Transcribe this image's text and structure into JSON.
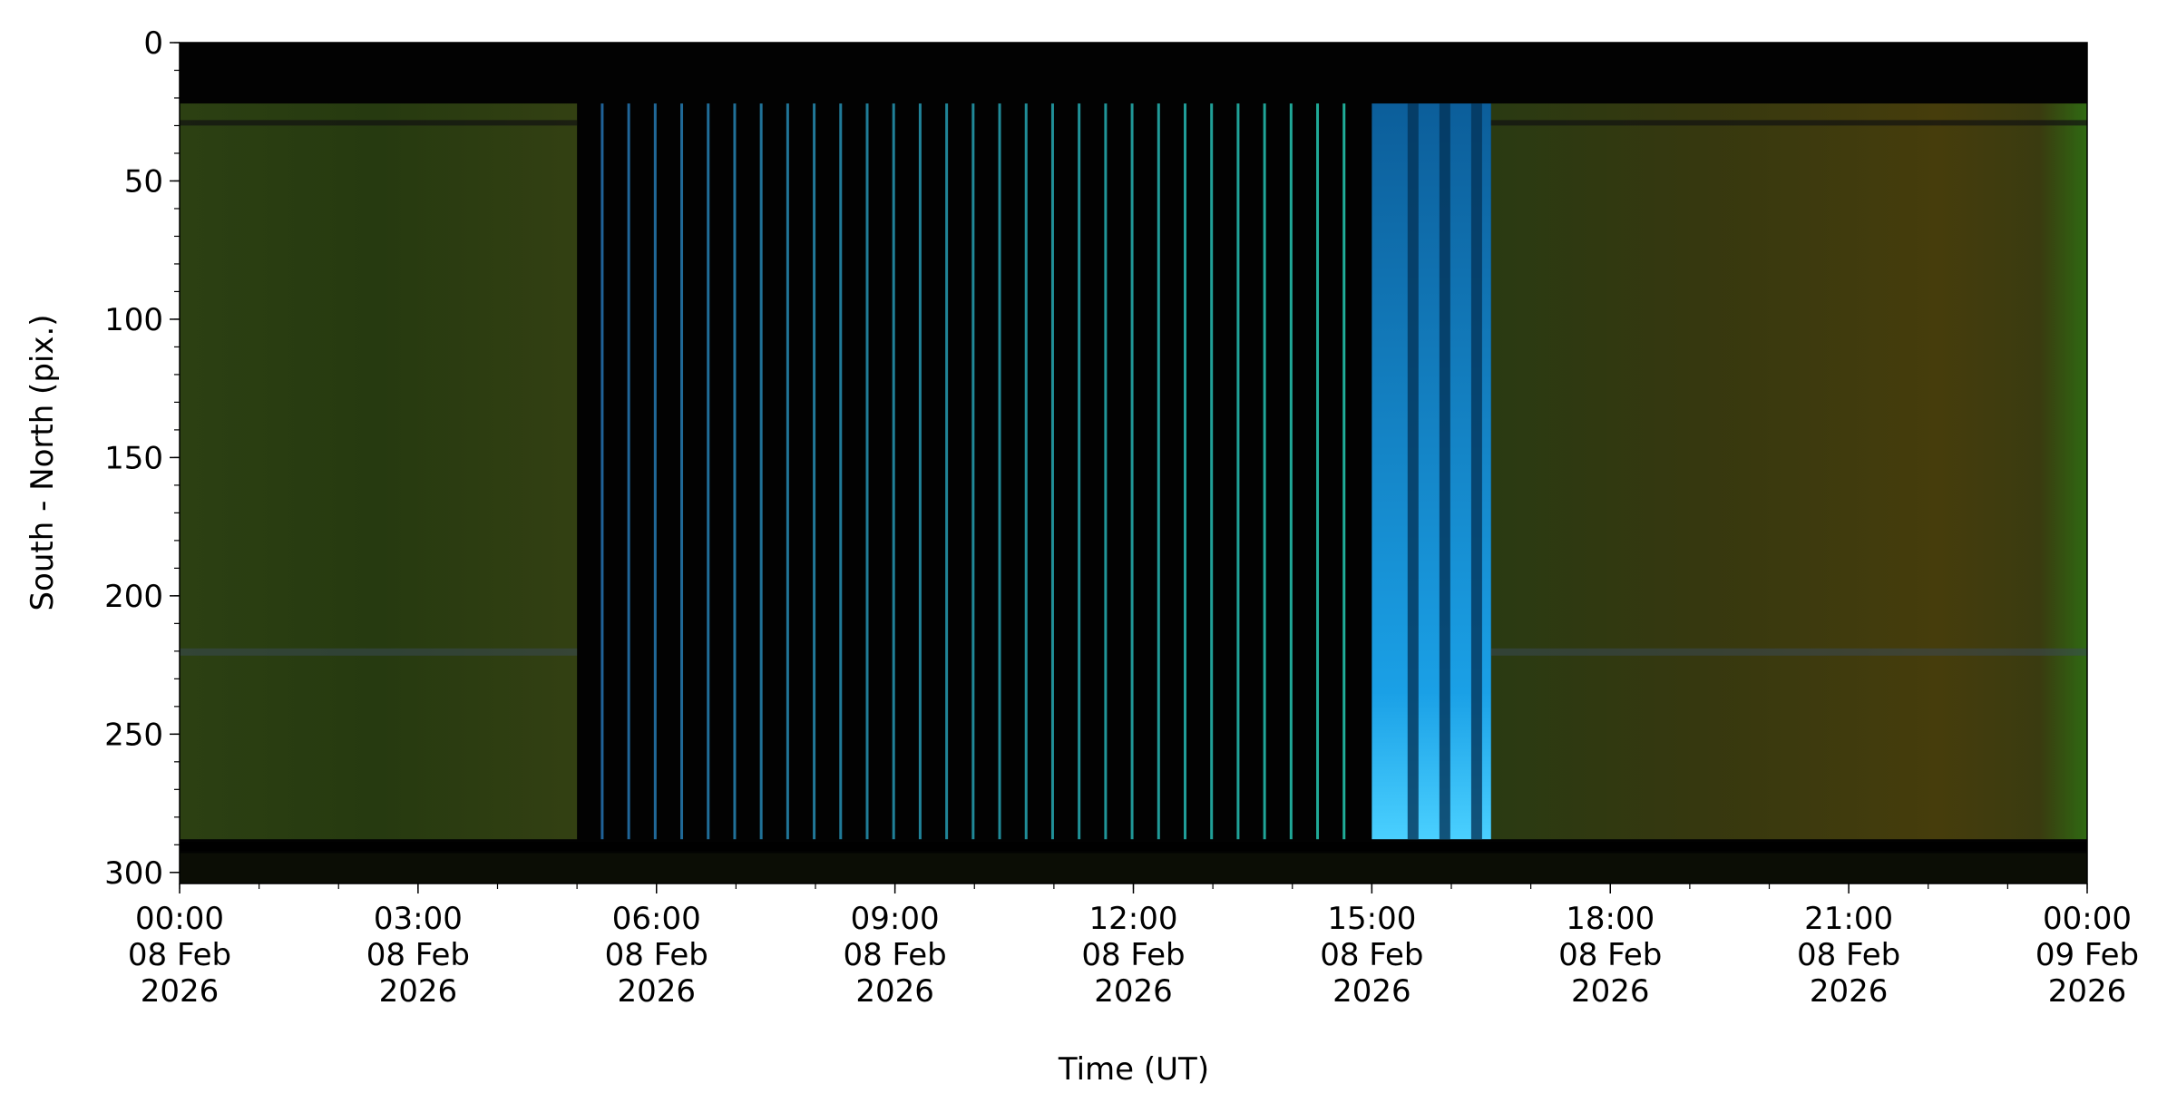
{
  "chart_data": {
    "type": "keogram",
    "xlabel": "Time (UT)",
    "ylabel": "South - North (pix.)",
    "xlim": [
      "2026-02-08T00:00",
      "2026-02-09T00:00"
    ],
    "xticks": [
      {
        "value": "2026-02-08T00:00",
        "label": "00:00\n08 Feb\n2026"
      },
      {
        "value": "2026-02-08T03:00",
        "label": "03:00\n08 Feb\n2026"
      },
      {
        "value": "2026-02-08T06:00",
        "label": "06:00\n08 Feb\n2026"
      },
      {
        "value": "2026-02-08T09:00",
        "label": "09:00\n08 Feb\n2026"
      },
      {
        "value": "2026-02-08T12:00",
        "label": "12:00\n08 Feb\n2026"
      },
      {
        "value": "2026-02-08T15:00",
        "label": "15:00\n08 Feb\n2026"
      },
      {
        "value": "2026-02-08T18:00",
        "label": "18:00\n08 Feb\n2026"
      },
      {
        "value": "2026-02-08T21:00",
        "label": "21:00\n08 Feb\n2026"
      },
      {
        "value": "2026-02-09T00:00",
        "label": "00:00\n09 Feb\n2026"
      }
    ],
    "ylim": [
      304,
      0
    ],
    "yticks": [
      0,
      50,
      100,
      150,
      200,
      250,
      300
    ]
  }
}
